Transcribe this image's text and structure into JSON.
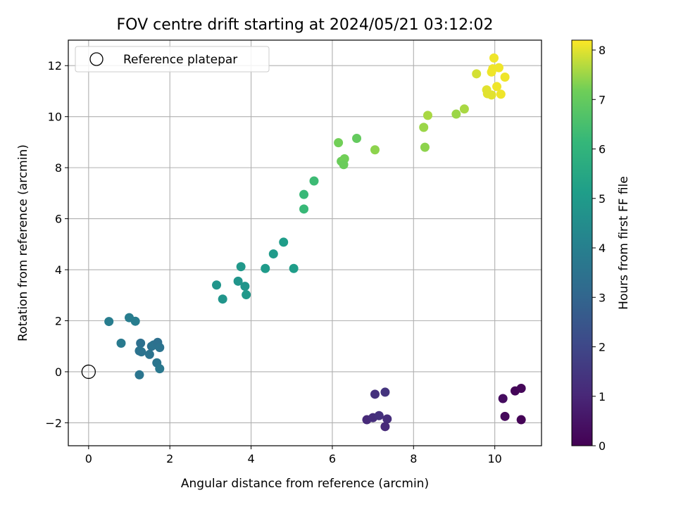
{
  "chart_data": {
    "type": "scatter",
    "title": "FOV centre drift starting at 2024/05/21 03:12:02",
    "xlabel": "Angular distance from reference (arcmin)",
    "ylabel": "Rotation from reference (arcmin)",
    "xlim": [
      -0.5,
      11.15
    ],
    "ylim": [
      -2.9,
      13.0
    ],
    "xticks": [
      0,
      2,
      4,
      6,
      8,
      10
    ],
    "yticks": [
      -2,
      0,
      2,
      4,
      6,
      8,
      10,
      12
    ],
    "xtick_labels": [
      "0",
      "2",
      "4",
      "6",
      "8",
      "10"
    ],
    "ytick_labels": [
      "−2",
      "0",
      "2",
      "4",
      "6",
      "8",
      "10",
      "12"
    ],
    "grid": true,
    "legend": {
      "placement": "top-left",
      "entries": [
        "Reference platepar"
      ]
    },
    "reference_point": {
      "x": 0,
      "y": 0,
      "label": "Reference platepar"
    },
    "colorbar": {
      "label": "Hours from first FF file",
      "colormap": "viridis",
      "range": [
        0,
        8.2
      ],
      "ticks": [
        0,
        1,
        2,
        3,
        4,
        5,
        6,
        7,
        8
      ],
      "tick_labels": [
        "0",
        "1",
        "2",
        "3",
        "4",
        "5",
        "6",
        "7",
        "8"
      ]
    },
    "points": [
      {
        "x": 10.5,
        "y": -0.75,
        "c": 0.1
      },
      {
        "x": 10.65,
        "y": -0.65,
        "c": 0.15
      },
      {
        "x": 10.2,
        "y": -1.05,
        "c": 0.3
      },
      {
        "x": 10.65,
        "y": -1.88,
        "c": 0.05
      },
      {
        "x": 10.25,
        "y": -1.75,
        "c": 0.2
      },
      {
        "x": 7.05,
        "y": -0.88,
        "c": 1.3
      },
      {
        "x": 7.3,
        "y": -0.8,
        "c": 1.4
      },
      {
        "x": 6.85,
        "y": -1.88,
        "c": 1.1
      },
      {
        "x": 7.0,
        "y": -1.8,
        "c": 1.2
      },
      {
        "x": 7.15,
        "y": -1.72,
        "c": 1.3
      },
      {
        "x": 7.35,
        "y": -1.85,
        "c": 1.2
      },
      {
        "x": 7.3,
        "y": -2.15,
        "c": 1.1
      },
      {
        "x": 0.5,
        "y": 1.97,
        "c": 3.9
      },
      {
        "x": 0.8,
        "y": 1.12,
        "c": 3.8
      },
      {
        "x": 1.0,
        "y": 2.12,
        "c": 3.9
      },
      {
        "x": 1.15,
        "y": 1.98,
        "c": 3.9
      },
      {
        "x": 1.28,
        "y": 1.12,
        "c": 3.4
      },
      {
        "x": 1.25,
        "y": 0.82,
        "c": 3.5
      },
      {
        "x": 1.3,
        "y": 0.78,
        "c": 3.5
      },
      {
        "x": 1.55,
        "y": 1.0,
        "c": 3.4
      },
      {
        "x": 1.6,
        "y": 1.05,
        "c": 3.5
      },
      {
        "x": 1.7,
        "y": 1.15,
        "c": 3.4
      },
      {
        "x": 1.75,
        "y": 0.95,
        "c": 3.5
      },
      {
        "x": 1.5,
        "y": 0.68,
        "c": 3.5
      },
      {
        "x": 1.68,
        "y": 0.35,
        "c": 3.6
      },
      {
        "x": 1.75,
        "y": 0.12,
        "c": 3.7
      },
      {
        "x": 1.25,
        "y": -0.12,
        "c": 3.6
      },
      {
        "x": 3.15,
        "y": 3.4,
        "c": 4.8
      },
      {
        "x": 3.3,
        "y": 2.85,
        "c": 4.8
      },
      {
        "x": 3.68,
        "y": 3.55,
        "c": 4.8
      },
      {
        "x": 3.75,
        "y": 4.12,
        "c": 4.9
      },
      {
        "x": 3.85,
        "y": 3.35,
        "c": 4.8
      },
      {
        "x": 3.88,
        "y": 3.02,
        "c": 4.9
      },
      {
        "x": 4.35,
        "y": 4.05,
        "c": 5.0
      },
      {
        "x": 4.55,
        "y": 4.62,
        "c": 5.0
      },
      {
        "x": 4.8,
        "y": 5.08,
        "c": 5.1
      },
      {
        "x": 5.05,
        "y": 4.05,
        "c": 5.1
      },
      {
        "x": 5.3,
        "y": 6.95,
        "c": 6.2
      },
      {
        "x": 5.3,
        "y": 6.38,
        "c": 6.2
      },
      {
        "x": 5.55,
        "y": 7.48,
        "c": 6.3
      },
      {
        "x": 6.15,
        "y": 8.98,
        "c": 7.2
      },
      {
        "x": 6.22,
        "y": 8.25,
        "c": 7.1
      },
      {
        "x": 6.3,
        "y": 8.35,
        "c": 7.2
      },
      {
        "x": 6.28,
        "y": 8.12,
        "c": 7.1
      },
      {
        "x": 6.6,
        "y": 9.15,
        "c": 7.0
      },
      {
        "x": 7.05,
        "y": 8.7,
        "c": 7.4
      },
      {
        "x": 8.25,
        "y": 9.58,
        "c": 7.5
      },
      {
        "x": 8.28,
        "y": 8.8,
        "c": 7.4
      },
      {
        "x": 8.35,
        "y": 10.05,
        "c": 7.6
      },
      {
        "x": 9.05,
        "y": 10.1,
        "c": 7.5
      },
      {
        "x": 9.25,
        "y": 10.3,
        "c": 7.6
      },
      {
        "x": 9.55,
        "y": 11.68,
        "c": 7.9
      },
      {
        "x": 9.8,
        "y": 11.05,
        "c": 8.0
      },
      {
        "x": 9.82,
        "y": 10.9,
        "c": 8.0
      },
      {
        "x": 9.92,
        "y": 10.85,
        "c": 8.0
      },
      {
        "x": 9.92,
        "y": 11.75,
        "c": 8.1
      },
      {
        "x": 9.95,
        "y": 11.88,
        "c": 8.1
      },
      {
        "x": 9.98,
        "y": 12.3,
        "c": 8.1
      },
      {
        "x": 10.05,
        "y": 11.18,
        "c": 8.1
      },
      {
        "x": 10.1,
        "y": 11.92,
        "c": 8.1
      },
      {
        "x": 10.15,
        "y": 10.88,
        "c": 8.1
      },
      {
        "x": 10.25,
        "y": 11.55,
        "c": 8.1
      }
    ]
  }
}
